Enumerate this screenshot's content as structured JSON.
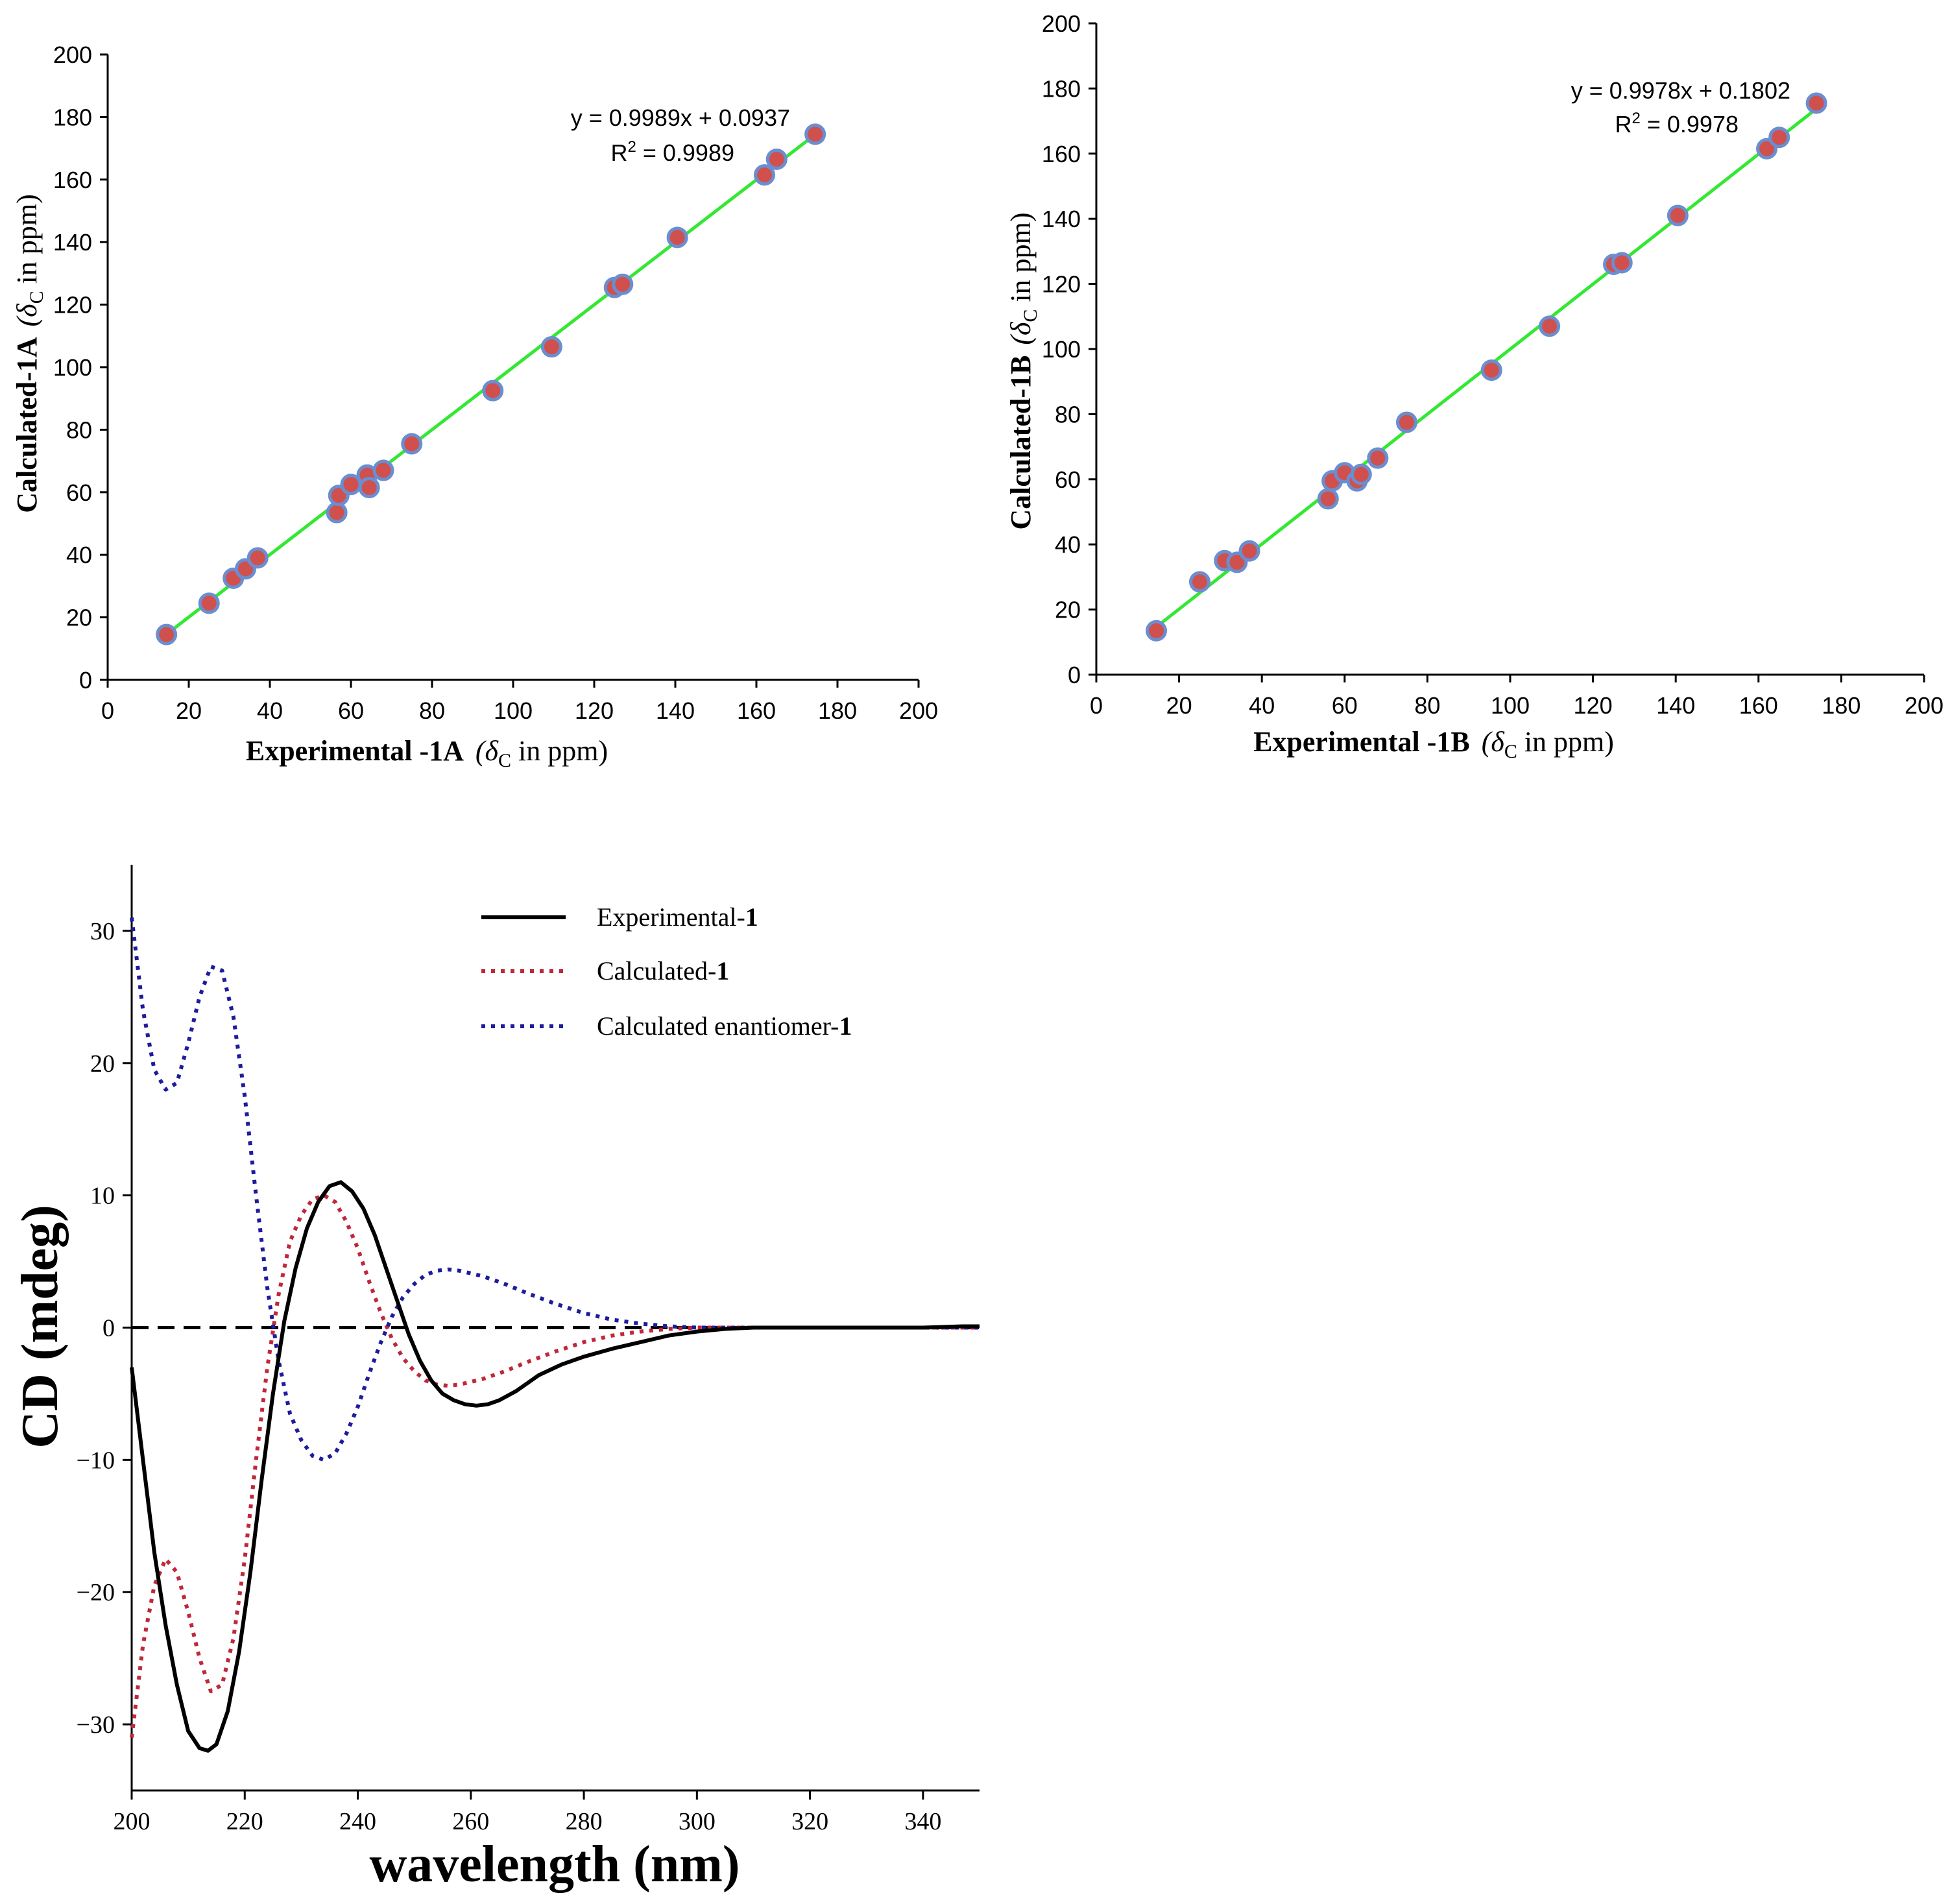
{
  "chart_data": [
    {
      "id": "chartA",
      "type": "scatter",
      "xlabel": "Experimental -1A",
      "ylabel": "Calculated-1A",
      "unit_prefix": "(δ",
      "unit_sub": "C",
      "unit_suffix": " in ppm)",
      "xlim": [
        0,
        200
      ],
      "ylim": [
        0,
        200
      ],
      "xticks": [
        0,
        20,
        40,
        60,
        80,
        100,
        120,
        140,
        160,
        180,
        200
      ],
      "yticks": [
        0,
        20,
        40,
        60,
        80,
        100,
        120,
        140,
        160,
        180,
        200
      ],
      "equation": "y = 0.9989x + 0.0937",
      "r2_prefix": "R",
      "r2_sup": "2",
      "r2_value": " = 0.9989",
      "fit": {
        "slope": 0.9989,
        "intercept": 0.0937,
        "x_range": [
          14.5,
          174.5
        ]
      },
      "colors": {
        "fit": "#33e833",
        "point_fill": "#d0504e",
        "point_edge": "#6a8ed0"
      },
      "x": [
        14.5,
        25,
        31,
        34,
        37,
        56.5,
        57,
        60,
        64,
        64.5,
        68,
        75,
        95,
        109.5,
        125,
        127,
        140.5,
        162,
        165,
        174.5
      ],
      "y": [
        14.5,
        24.5,
        32.5,
        35.5,
        39,
        53.5,
        59,
        62.5,
        65.5,
        61.5,
        67,
        75.5,
        92.5,
        106.5,
        125.5,
        126.5,
        141.5,
        161.5,
        166.5,
        174.5
      ]
    },
    {
      "id": "chartB",
      "type": "scatter",
      "xlabel": "Experimental -1B",
      "ylabel": "Calculated-1B",
      "unit_prefix": "(δ",
      "unit_sub": "C",
      "unit_suffix": " in ppm)",
      "xlim": [
        0,
        200
      ],
      "ylim": [
        0,
        200
      ],
      "xticks": [
        0,
        20,
        40,
        60,
        80,
        100,
        120,
        140,
        160,
        180,
        200
      ],
      "yticks": [
        0,
        20,
        40,
        60,
        80,
        100,
        120,
        140,
        160,
        180,
        200
      ],
      "equation": "y = 0.9978x + 0.1802",
      "r2_prefix": "R",
      "r2_sup": "2",
      "r2_value": " = 0.9978",
      "fit": {
        "slope": 0.9978,
        "intercept": 0.1802,
        "x_range": [
          14.5,
          174.5
        ]
      },
      "colors": {
        "fit": "#33e833",
        "point_fill": "#d0504e",
        "point_edge": "#6a8ed0"
      },
      "x": [
        14.5,
        25,
        31,
        34,
        37,
        56,
        57,
        60,
        63,
        64,
        68,
        75,
        95.5,
        109.5,
        125,
        127,
        140.5,
        162,
        165,
        174
      ],
      "y": [
        13.5,
        28.5,
        35,
        34.5,
        38,
        54,
        59.5,
        62,
        59.5,
        61.5,
        66.5,
        77.5,
        93.5,
        107,
        126,
        126.5,
        141,
        161.5,
        165,
        175.5
      ]
    },
    {
      "id": "chartC",
      "type": "line",
      "xlabel": "wavelength (nm)",
      "ylabel": "CD (mdeg)",
      "xlim": [
        200,
        350
      ],
      "ylim": [
        -35,
        35
      ],
      "xticks": [
        200,
        220,
        240,
        260,
        280,
        300,
        320,
        340
      ],
      "yticks": [
        -30,
        -20,
        -10,
        0,
        10,
        20,
        30
      ],
      "ytick_labels": [
        "−30",
        "−20",
        "−10",
        "0",
        "10",
        "20",
        "30"
      ],
      "zero_line": "dashed",
      "legend": {
        "placement": "top-center"
      },
      "series": [
        {
          "name": "Experimental-",
          "bold_suffix": "1",
          "style": "solid",
          "color": "#000000",
          "x": [
            200,
            202,
            204,
            206,
            208,
            210,
            212,
            213.5,
            215,
            217,
            219,
            221,
            223,
            225,
            227,
            229,
            231,
            233,
            235,
            237,
            239,
            241,
            243,
            245,
            247,
            249,
            251,
            253,
            255,
            257,
            259,
            261,
            263,
            265,
            268,
            272,
            276,
            280,
            285,
            290,
            295,
            300,
            305,
            310,
            320,
            330,
            340,
            347,
            350
          ],
          "y": [
            -3,
            -10,
            -17,
            -22.5,
            -27,
            -30.5,
            -31.8,
            -32,
            -31.5,
            -29,
            -24.5,
            -18.5,
            -11.5,
            -5,
            0.5,
            4.5,
            7.5,
            9.5,
            10.7,
            11,
            10.3,
            9,
            7,
            4.5,
            2,
            -0.5,
            -2.5,
            -4,
            -5,
            -5.5,
            -5.8,
            -5.9,
            -5.8,
            -5.5,
            -4.8,
            -3.6,
            -2.8,
            -2.2,
            -1.6,
            -1.1,
            -0.6,
            -0.3,
            -0.1,
            0,
            0,
            0,
            0,
            0.1,
            0.1
          ]
        },
        {
          "name": "Calculated-",
          "bold_suffix": "1",
          "style": "dotted",
          "color": "#c0283a",
          "x": [
            200,
            202,
            204,
            206,
            208,
            210,
            212,
            214,
            216,
            218,
            220,
            222,
            224,
            226,
            228,
            230,
            232,
            234,
            236,
            238,
            240,
            242,
            244,
            246,
            248,
            250,
            252,
            254,
            256,
            258,
            260,
            262,
            264,
            266,
            270,
            275,
            280,
            285,
            290,
            295,
            300,
            310,
            320,
            330,
            340,
            350
          ],
          "y": [
            -31,
            -24,
            -19.5,
            -17.5,
            -18.5,
            -21.5,
            -25,
            -27.5,
            -27,
            -23.5,
            -17.5,
            -10,
            -3,
            2.5,
            6.5,
            8.5,
            9.7,
            10,
            9.5,
            8,
            6,
            3.5,
            1.2,
            -0.8,
            -2.3,
            -3.3,
            -4,
            -4.3,
            -4.4,
            -4.3,
            -4.1,
            -3.9,
            -3.6,
            -3.3,
            -2.6,
            -1.8,
            -1.1,
            -0.6,
            -0.3,
            -0.1,
            0,
            0,
            0,
            0,
            0,
            0
          ]
        },
        {
          "name": "Calculated enantiomer-",
          "bold_suffix": "1",
          "style": "dotted",
          "color": "#1c1c9c",
          "x": [
            200,
            202,
            204,
            206,
            208,
            210,
            212,
            214,
            216,
            218,
            220,
            222,
            224,
            226,
            228,
            230,
            232,
            234,
            236,
            238,
            240,
            242,
            244,
            246,
            248,
            250,
            252,
            254,
            256,
            258,
            260,
            262,
            264,
            266,
            270,
            275,
            280,
            285,
            290,
            295,
            300,
            310,
            320,
            330,
            340,
            350
          ],
          "y": [
            31,
            24,
            19.5,
            18,
            18.5,
            21.5,
            25,
            27.3,
            27,
            23.5,
            17.5,
            10,
            3,
            -2.5,
            -6.5,
            -8.5,
            -9.7,
            -10,
            -9.5,
            -8,
            -6,
            -3.5,
            -1.2,
            0.8,
            2.3,
            3.3,
            4,
            4.3,
            4.4,
            4.3,
            4.1,
            3.9,
            3.6,
            3.3,
            2.6,
            1.8,
            1.1,
            0.6,
            0.3,
            0.1,
            0,
            0,
            0,
            0,
            0,
            0
          ]
        }
      ]
    }
  ]
}
